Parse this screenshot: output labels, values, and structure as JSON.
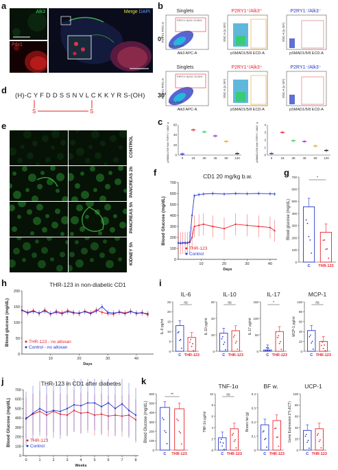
{
  "panels": {
    "a": {
      "label": "a",
      "alk3": "Alk3",
      "pdx1": "Pdx1",
      "merge": "Merge",
      "dapi": "DAPI"
    },
    "b": {
      "label": "b",
      "row0": {
        "time": "0'",
        "singlets": "Singlets",
        "pos": "P2RY1⁺/Alk3⁺",
        "neg": "P2RY1⁻/Alk3⁻",
        "gate1": "P2RY1+ ALK3- 22.36%",
        "gate2": "ALK3- 20.39%"
      },
      "row30": {
        "time": "30'",
        "singlets": "Singlets",
        "pos": "P2RY1⁺/Alk3⁺",
        "neg": "P2RY1⁻/Alk3⁻",
        "gate1": "P2RY1+ ALK3+ 22.09%",
        "gate2": "ALK3- 20.6%"
      },
      "ylab1": "P2RY1 FITC-A",
      "xlab1": "Alk3 APC-A",
      "ylab2": "SSC-A (x 10⁶)",
      "xlab2": "pSMAD1/5/8 ECD-A"
    },
    "c": {
      "label": "c",
      "ylab_left": "% of pSMAD1/5/8 from P2RY1⁺/Alk3⁺ population",
      "ylab_right": "% of pSMAD1/5/8 from P2RY1⁻/Alk3⁻ population",
      "x_ticks": [
        "0",
        "15",
        "30",
        "45",
        "60",
        "120"
      ]
    },
    "d": {
      "label": "d",
      "sequence": "(H)-C Y F D D S S N V L C K K Y R S-(OH)",
      "bond": "S ————————— S"
    },
    "e": {
      "label": "e",
      "rows": [
        "CONTROL",
        "PANCREAS 2h",
        "PANCREAS 5h",
        "KIDNEY 5h"
      ]
    },
    "f": {
      "label": "f",
      "title": "CD1  20 mg/kg b.w.",
      "ylabel": "Blood Glucose (mg/dL)",
      "xlabel": "Days",
      "legend": [
        "THR-123",
        "Control"
      ]
    },
    "g": {
      "label": "g",
      "ylabel": "Blood glucose (mg/dL)",
      "sig": "*"
    },
    "h": {
      "label": "h",
      "title": "THR-123 in non-diabetic CD1",
      "ylabel": "Blood glucose (mg/dL)",
      "xlabel": "Days",
      "legend": [
        "THR-123 - no alloxan",
        "Control - no alloxan"
      ]
    },
    "i": {
      "label": "i",
      "titles": [
        "IL-6",
        "IL-10",
        "IL-17",
        "MCP-1"
      ],
      "ylabels": [
        "IL-6 pg/ml",
        "IL-10 pg/ml",
        "IL-17 pg/ml",
        "MCP-1 pg/ml"
      ],
      "sigs": [
        "ns",
        "ns",
        "*",
        "ns"
      ]
    },
    "j": {
      "label": "j",
      "title": "THR-123 in CD1 after diabetes",
      "ylabel": "Blood Glucose (mg/dL)",
      "xlabel": "Weeks",
      "legend": [
        "THR-123",
        "Control"
      ]
    },
    "k": {
      "label": "k",
      "ylabel": "Blood Glucose (mg/dL)",
      "sig": "**",
      "titles": [
        "TNF-1α",
        "BF w.",
        "UCP-1"
      ],
      "ylabels": [
        "TNF-1α pg/ml",
        "Brown fat (g)",
        "Gene Expression 2^(-ΔCT)"
      ],
      "sigs": [
        "ns",
        "",
        ""
      ]
    },
    "cats": {
      "c": "C",
      "thr": "THR-123"
    }
  },
  "colors": {
    "red": "#e8202a",
    "blue": "#2233cc",
    "green": "#2fd04a",
    "orange": "#f0a020",
    "purple": "#9a2ad0"
  },
  "chart_data": [
    {
      "panel": "c-left",
      "type": "scatter",
      "x": [
        0,
        15,
        30,
        45,
        60,
        120
      ],
      "values": [
        2,
        50,
        46,
        38,
        27,
        3
      ],
      "ylim": [
        0,
        60
      ]
    },
    {
      "panel": "c-right",
      "type": "scatter",
      "x": [
        0,
        15,
        30,
        45,
        60,
        120
      ],
      "values": [
        0.2,
        3.0,
        1.9,
        1.8,
        1.2,
        0.6
      ],
      "ylim": [
        0,
        4
      ]
    },
    {
      "panel": "f",
      "type": "line",
      "xlabel": "Days",
      "ylabel": "Blood Glucose (mg/dL)",
      "ylim": [
        0,
        700
      ],
      "x_ticks": [
        10,
        20,
        30,
        40
      ],
      "y_ticks": [
        0,
        100,
        200,
        300,
        400,
        500,
        600,
        700
      ],
      "series": [
        {
          "name": "THR-123",
          "x": [
            0,
            1,
            2,
            3,
            4,
            5,
            6,
            7,
            9,
            11,
            15,
            20,
            25,
            30,
            35,
            40,
            42
          ],
          "values": [
            150,
            145,
            150,
            148,
            150,
            155,
            200,
            300,
            310,
            320,
            300,
            280,
            320,
            310,
            300,
            290,
            260
          ]
        },
        {
          "name": "Control",
          "x": [
            0,
            1,
            2,
            3,
            4,
            5,
            6,
            7,
            9,
            11,
            15,
            20,
            25,
            30,
            35,
            40,
            42
          ],
          "values": [
            150,
            148,
            150,
            152,
            150,
            160,
            400,
            580,
            590,
            595,
            600,
            595,
            600,
            598,
            600,
            598,
            595
          ]
        }
      ]
    },
    {
      "panel": "g",
      "type": "bar",
      "categories": [
        "C",
        "THR-123"
      ],
      "values": [
        455,
        245
      ],
      "ylim": [
        0,
        700
      ],
      "y_ticks": [
        0,
        100,
        200,
        300,
        400,
        500,
        600,
        700
      ]
    },
    {
      "panel": "h",
      "type": "line",
      "xlabel": "Days",
      "ylabel": "Blood glucose (mg/dL)",
      "ylim": [
        0,
        200
      ],
      "x_ticks": [
        10,
        20,
        30,
        40
      ],
      "y_ticks": [
        0,
        50,
        100,
        150,
        200
      ],
      "series": [
        {
          "name": "THR-123 - no alloxan",
          "x": [
            0,
            2,
            4,
            6,
            8,
            10,
            12,
            14,
            16,
            18,
            20,
            22,
            24,
            26,
            28,
            30,
            32,
            34,
            36,
            38,
            40,
            42,
            44
          ],
          "values": [
            140,
            132,
            138,
            128,
            140,
            126,
            136,
            130,
            138,
            132,
            128,
            136,
            130,
            140,
            132,
            128,
            126,
            134,
            130,
            136,
            128,
            132,
            124
          ]
        },
        {
          "name": "Control - no alloxan",
          "x": [
            0,
            2,
            4,
            6,
            8,
            10,
            12,
            14,
            16,
            18,
            20,
            22,
            24,
            26,
            28,
            30,
            32,
            34,
            36,
            38,
            40,
            42,
            44
          ],
          "values": [
            138,
            130,
            135,
            130,
            136,
            128,
            132,
            128,
            134,
            130,
            130,
            134,
            128,
            136,
            150,
            132,
            130,
            132,
            128,
            134,
            130,
            130,
            128
          ]
        }
      ]
    },
    {
      "panel": "i-IL-6",
      "type": "bar",
      "categories": [
        "C",
        "THR-123"
      ],
      "values": [
        13,
        7
      ],
      "ylim": [
        0,
        25
      ],
      "y_ticks": [
        0,
        5,
        10,
        15,
        20,
        25
      ]
    },
    {
      "panel": "i-IL-10",
      "type": "bar",
      "categories": [
        "C",
        "THR-123"
      ],
      "values": [
        22,
        25
      ],
      "ylim": [
        0,
        60
      ],
      "y_ticks": [
        0,
        20,
        40,
        60
      ]
    },
    {
      "panel": "i-IL-17",
      "type": "bar",
      "categories": [
        "C",
        "THR-123"
      ],
      "values": [
        4,
        60
      ],
      "ylim": [
        0,
        150
      ],
      "y_ticks": [
        0,
        50,
        100,
        150
      ]
    },
    {
      "panel": "i-MCP-1",
      "type": "bar",
      "categories": [
        "C",
        "THR-123"
      ],
      "values": [
        42,
        20
      ],
      "ylim": [
        0,
        100
      ],
      "y_ticks": [
        0,
        20,
        40,
        60,
        80,
        100
      ]
    },
    {
      "panel": "j",
      "type": "line",
      "xlabel": "Weeks",
      "ylabel": "Blood Glucose (mg/dL)",
      "ylim": [
        0,
        700
      ],
      "x_ticks": [
        0,
        1,
        2,
        3,
        4,
        5,
        6,
        7,
        8
      ],
      "y_ticks": [
        0,
        100,
        200,
        300,
        400,
        500,
        600,
        700
      ],
      "series": [
        {
          "name": "THR-123",
          "x": [
            0,
            0.5,
            1,
            1.5,
            2,
            2.5,
            3,
            3.5,
            4,
            4.5,
            5,
            5.5,
            6,
            6.5,
            7,
            7.5,
            8
          ],
          "values": [
            400,
            440,
            470,
            430,
            470,
            440,
            430,
            480,
            450,
            460,
            430,
            440,
            420,
            430,
            420,
            430,
            380
          ]
        },
        {
          "name": "Control",
          "x": [
            0,
            0.5,
            1,
            1.5,
            2,
            2.5,
            3,
            3.5,
            4,
            4.5,
            5,
            5.5,
            6,
            6.5,
            7,
            7.5,
            8
          ],
          "values": [
            390,
            450,
            500,
            460,
            480,
            470,
            500,
            540,
            530,
            560,
            560,
            520,
            560,
            500,
            550,
            480,
            430
          ]
        }
      ]
    },
    {
      "panel": "k-bg",
      "type": "bar",
      "categories": [
        "C",
        "THR-123"
      ],
      "values": [
        455,
        440
      ],
      "ylim": [
        0,
        600
      ],
      "y_ticks": [
        0,
        100,
        200,
        300,
        400,
        500,
        600
      ]
    },
    {
      "panel": "k-TNF",
      "type": "bar",
      "categories": [
        "C",
        "THR-123"
      ],
      "values": [
        2.2,
        3.8
      ],
      "ylim": [
        0,
        10
      ],
      "y_ticks": [
        0,
        2,
        4,
        6,
        8,
        10
      ]
    },
    {
      "panel": "k-BF",
      "type": "bar",
      "categories": [
        "C",
        "THR-123"
      ],
      "values": [
        0.18,
        0.21
      ],
      "ylim": [
        0,
        0.4
      ],
      "y_ticks": [
        0.0,
        0.1,
        0.2,
        0.3,
        0.4
      ]
    },
    {
      "panel": "k-UCP",
      "type": "bar",
      "categories": [
        "C",
        "THR-123"
      ],
      "values": [
        35,
        38
      ],
      "ylim": [
        0,
        100
      ],
      "y_ticks": [
        0,
        20,
        40,
        60,
        80,
        100
      ]
    }
  ]
}
